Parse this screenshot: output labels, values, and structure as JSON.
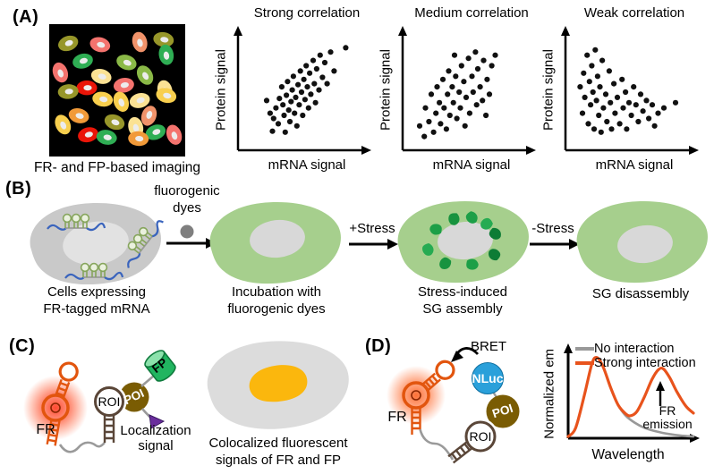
{
  "figure": {
    "background": "#ffffff"
  },
  "panel_a": {
    "label": "(A)",
    "caption": "FR- and FP-based imaging",
    "palette": {
      "olive": "#97962a",
      "salmon": "#f4736e",
      "orangesalmon": "#f0926a",
      "green": "#2fae54",
      "lightgreen": "#8ab947",
      "paleyellow": "#fbe294",
      "yellow": "#f8cf4e",
      "red": "#ea1508",
      "orange": "#f19a39"
    },
    "nucleus_color": "#ececec",
    "cells": [
      [
        13,
        13,
        "olive",
        -20
      ],
      [
        37,
        14,
        "salmon",
        15
      ],
      [
        67,
        12,
        "orangesalmon",
        75
      ],
      [
        85,
        10,
        "olive",
        10
      ],
      [
        24,
        27,
        "green",
        -15
      ],
      [
        87,
        22,
        "green",
        80
      ],
      [
        57,
        28,
        "lightgreen",
        20
      ],
      [
        7,
        36,
        "salmon",
        70
      ],
      [
        38,
        39,
        "paleyellow",
        15
      ],
      [
        27,
        48,
        "red",
        0
      ],
      [
        55,
        46,
        "salmon",
        -10
      ],
      [
        71,
        38,
        "lightgreen",
        60
      ],
      [
        86,
        50,
        "paleyellow",
        75
      ],
      [
        13,
        51,
        "olive",
        -5
      ],
      [
        39,
        57,
        "yellow",
        10
      ],
      [
        53,
        59,
        "yellow",
        70
      ],
      [
        67,
        58,
        "paleyellow",
        -15
      ],
      [
        21,
        70,
        "orange",
        15
      ],
      [
        74,
        70,
        "orangesalmon",
        -70
      ],
      [
        48,
        75,
        "olive",
        20
      ],
      [
        9,
        77,
        "yellow",
        65
      ],
      [
        64,
        79,
        "paleyellow",
        75
      ],
      [
        28,
        85,
        "red",
        -15
      ],
      [
        42,
        87,
        "green",
        10
      ],
      [
        79,
        83,
        "green",
        -20
      ],
      [
        66,
        88,
        "orange",
        5
      ],
      [
        93,
        85,
        "salmon",
        70
      ],
      [
        87,
        54,
        "yellow",
        15
      ]
    ]
  },
  "chart_data": [
    {
      "type": "scatter",
      "title": "Strong correlation",
      "xlabel": "mRNA signal",
      "ylabel": "Protein signal",
      "axis_range": [
        0,
        100
      ],
      "grid": false,
      "points": [
        [
          20,
          42
        ],
        [
          23,
          30
        ],
        [
          25,
          13
        ],
        [
          26,
          25
        ],
        [
          28,
          35
        ],
        [
          30,
          20
        ],
        [
          31,
          44
        ],
        [
          33,
          55
        ],
        [
          34,
          38
        ],
        [
          35,
          28
        ],
        [
          36,
          12
        ],
        [
          37,
          47
        ],
        [
          38,
          60
        ],
        [
          39,
          33
        ],
        [
          40,
          22
        ],
        [
          41,
          41
        ],
        [
          42,
          52
        ],
        [
          43,
          65
        ],
        [
          44,
          30
        ],
        [
          45,
          45
        ],
        [
          46,
          18
        ],
        [
          47,
          57
        ],
        [
          48,
          38
        ],
        [
          49,
          70
        ],
        [
          50,
          50
        ],
        [
          51,
          28
        ],
        [
          52,
          62
        ],
        [
          53,
          43
        ],
        [
          54,
          75
        ],
        [
          55,
          55
        ],
        [
          56,
          35
        ],
        [
          57,
          68
        ],
        [
          58,
          48
        ],
        [
          60,
          80
        ],
        [
          61,
          58
        ],
        [
          62,
          40
        ],
        [
          63,
          72
        ],
        [
          65,
          52
        ],
        [
          66,
          85
        ],
        [
          68,
          64
        ],
        [
          70,
          78
        ],
        [
          72,
          58
        ],
        [
          75,
          88
        ],
        [
          78,
          70
        ],
        [
          88,
          92
        ]
      ]
    },
    {
      "type": "scatter",
      "title": "Medium correlation",
      "xlabel": "mRNA signal",
      "ylabel": "Protein signal",
      "axis_range": [
        0,
        100
      ],
      "grid": false,
      "points": [
        [
          10,
          18
        ],
        [
          14,
          8
        ],
        [
          15,
          35
        ],
        [
          18,
          22
        ],
        [
          20,
          48
        ],
        [
          22,
          12
        ],
        [
          24,
          30
        ],
        [
          25,
          55
        ],
        [
          27,
          40
        ],
        [
          28,
          20
        ],
        [
          30,
          62
        ],
        [
          31,
          35
        ],
        [
          33,
          15
        ],
        [
          34,
          48
        ],
        [
          35,
          70
        ],
        [
          36,
          28
        ],
        [
          38,
          55
        ],
        [
          39,
          40
        ],
        [
          40,
          85
        ],
        [
          41,
          65
        ],
        [
          42,
          25
        ],
        [
          44,
          50
        ],
        [
          45,
          35
        ],
        [
          46,
          75
        ],
        [
          48,
          60
        ],
        [
          49,
          18
        ],
        [
          50,
          45
        ],
        [
          52,
          82
        ],
        [
          53,
          30
        ],
        [
          55,
          65
        ],
        [
          56,
          50
        ],
        [
          58,
          88
        ],
        [
          59,
          38
        ],
        [
          60,
          72
        ],
        [
          62,
          55
        ],
        [
          64,
          42
        ],
        [
          65,
          80
        ],
        [
          67,
          28
        ],
        [
          68,
          62
        ],
        [
          70,
          48
        ],
        [
          72,
          75
        ],
        [
          75,
          85
        ]
      ]
    },
    {
      "type": "scatter",
      "title": "Weak correlation",
      "xlabel": "mRNA signal",
      "ylabel": "Protein signal",
      "axis_range": [
        0,
        100
      ],
      "grid": false,
      "points": [
        [
          8,
          55
        ],
        [
          10,
          30
        ],
        [
          11,
          68
        ],
        [
          12,
          45
        ],
        [
          14,
          85
        ],
        [
          15,
          20
        ],
        [
          16,
          60
        ],
        [
          17,
          38
        ],
        [
          18,
          75
        ],
        [
          19,
          50
        ],
        [
          20,
          15
        ],
        [
          21,
          90
        ],
        [
          22,
          42
        ],
        [
          23,
          65
        ],
        [
          24,
          28
        ],
        [
          25,
          55
        ],
        [
          26,
          12
        ],
        [
          27,
          80
        ],
        [
          28,
          35
        ],
        [
          30,
          48
        ],
        [
          31,
          22
        ],
        [
          33,
          70
        ],
        [
          34,
          40
        ],
        [
          35,
          15
        ],
        [
          37,
          58
        ],
        [
          38,
          30
        ],
        [
          40,
          45
        ],
        [
          42,
          20
        ],
        [
          44,
          62
        ],
        [
          45,
          35
        ],
        [
          47,
          50
        ],
        [
          48,
          15
        ],
        [
          50,
          40
        ],
        [
          52,
          28
        ],
        [
          54,
          55
        ],
        [
          56,
          38
        ],
        [
          58,
          22
        ],
        [
          60,
          48
        ],
        [
          62,
          32
        ],
        [
          65,
          42
        ],
        [
          67,
          25
        ],
        [
          70,
          38
        ],
        [
          72,
          18
        ],
        [
          75,
          30
        ],
        [
          80,
          35
        ],
        [
          90,
          40
        ]
      ]
    },
    {
      "type": "line",
      "title": "",
      "xlabel": "Wavelength",
      "ylabel": "Normalized em",
      "legend": [
        "No interaction",
        "Strong interaction"
      ],
      "legend_position": "top",
      "annotation": "FR\nemission",
      "series": [
        {
          "name": "No interaction",
          "color": "#999999",
          "points": [
            [
              0,
              2
            ],
            [
              6,
              12
            ],
            [
              13,
              50
            ],
            [
              19,
              86
            ],
            [
              23,
              93
            ],
            [
              28,
              82
            ],
            [
              34,
              58
            ],
            [
              40,
              38
            ],
            [
              46,
              26
            ],
            [
              53,
              18
            ],
            [
              61,
              12
            ],
            [
              70,
              8
            ],
            [
              80,
              5
            ],
            [
              90,
              3
            ],
            [
              100,
              2
            ]
          ]
        },
        {
          "name": "Strong interaction",
          "color": "#e8531c",
          "points": [
            [
              0,
              2
            ],
            [
              6,
              12
            ],
            [
              13,
              50
            ],
            [
              19,
              86
            ],
            [
              23,
              93
            ],
            [
              28,
              82
            ],
            [
              34,
              58
            ],
            [
              40,
              38
            ],
            [
              46,
              28
            ],
            [
              50,
              26
            ],
            [
              55,
              31
            ],
            [
              61,
              48
            ],
            [
              67,
              68
            ],
            [
              72,
              79
            ],
            [
              76,
              80
            ],
            [
              81,
              70
            ],
            [
              87,
              53
            ],
            [
              94,
              37
            ],
            [
              100,
              29
            ]
          ]
        }
      ]
    }
  ],
  "panel_b": {
    "label": "(B)",
    "arrow1_label": "fluorogenic\ndyes",
    "arrow2_label": "+Stress",
    "arrow3_label": "-Stress",
    "captions": [
      "Cells expressing\nFR-tagged mRNA",
      "Incubation with\nfluorogenic dyes",
      "Stress-induced\nSG assembly",
      "SG disassembly"
    ],
    "colors": {
      "cell_gray": "#c9c9c9",
      "cell_green": "#a6cf8d",
      "nucleus": "#d8d8d8",
      "mrna_blue": "#3a64bd",
      "hairpin_green": "#86a55c",
      "granule_green": "#1c9f47",
      "dye_gray": "#7f7f7f"
    }
  },
  "panel_c": {
    "label": "(C)",
    "fr_label": "FR",
    "roi_label": "ROI",
    "poi_label": "POI",
    "fp_label": "FP",
    "localization_label": "Localization\nsignal",
    "caption": "Colocalized fluorescent\nsignals of FR and FP",
    "colors": {
      "fr_orange": "#e2550e",
      "glow_red": "#ff1e00",
      "roi_brown": "#5a4638",
      "poi_brown": "#7a5c03",
      "fp_green": "#21b560",
      "triangle_purple": "#6a2d9c",
      "cell_gray": "#dcdcdc",
      "coloc_yellow": "#fbb70d",
      "connector_gray": "#9a9a9a"
    }
  },
  "panel_d": {
    "label": "(D)",
    "bret_label": "BRET",
    "nluc_label": "NLuc",
    "poi_label": "POI",
    "roi_label": "ROI",
    "fr_label": "FR",
    "colors": {
      "nluc_blue": "#2aa0da",
      "glow_orange": "#ff4a00"
    }
  }
}
